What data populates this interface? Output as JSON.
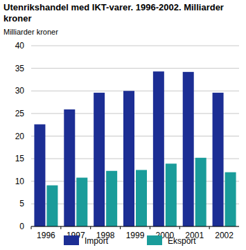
{
  "chart_data": {
    "type": "bar",
    "title": "Utenrikshandel med IKT-varer. 1996-2002. Milliarder kroner",
    "y_label": "Milliarder kroner",
    "categories": [
      "1996",
      "1997",
      "1998",
      "1999",
      "2000",
      "2001",
      "2002"
    ],
    "series": [
      {
        "name": "Import",
        "color": "#1c2e94",
        "values": [
          22.6,
          25.9,
          29.6,
          30.0,
          34.3,
          34.2,
          29.6
        ]
      },
      {
        "name": "Eksport",
        "color": "#1a9c9a",
        "values": [
          9.1,
          10.8,
          12.3,
          12.5,
          13.9,
          15.2,
          12.0
        ]
      }
    ],
    "ylim": [
      0,
      40
    ],
    "yticks": [
      0,
      5,
      10,
      15,
      20,
      25,
      30,
      35,
      40
    ],
    "grid": true,
    "legend": "bottom"
  }
}
